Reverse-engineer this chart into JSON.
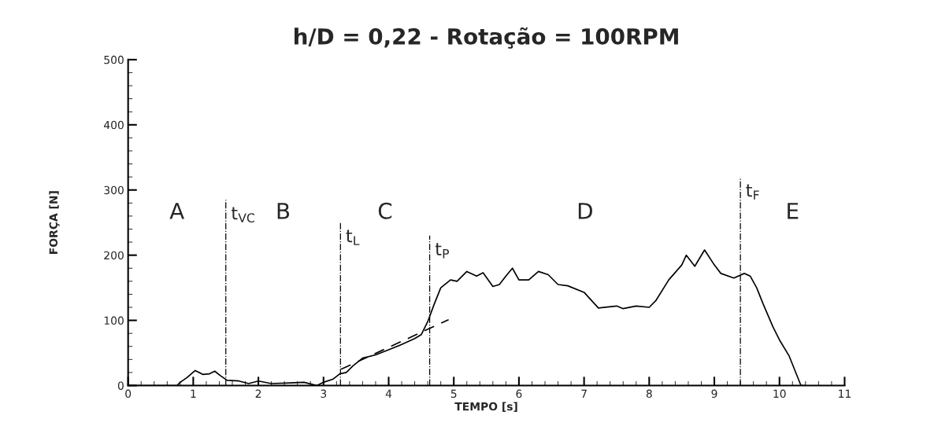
{
  "chart_data": {
    "type": "line",
    "title": "h/D = 0,22 - Rotação = 100RPM",
    "xlabel": "TEMPO [s]",
    "ylabel": "FORÇA [N]",
    "xlim": [
      0,
      11
    ],
    "ylim": [
      0,
      500
    ],
    "xticks": [
      0,
      1,
      2,
      3,
      4,
      5,
      6,
      7,
      8,
      9,
      10,
      11
    ],
    "yticks": [
      0,
      100,
      200,
      300,
      400,
      500
    ],
    "grid": false,
    "legend": false,
    "marker": "none",
    "series": [
      {
        "color": "#000000",
        "line_style": "solid",
        "x": [
          0,
          0.75,
          0.8,
          0.9,
          1.03,
          1.15,
          1.25,
          1.33,
          1.42,
          1.52,
          1.7,
          1.85,
          2.0,
          2.2,
          2.5,
          2.7,
          2.9,
          3.0,
          3.15,
          3.25,
          3.35,
          3.45,
          3.6,
          3.8,
          4.0,
          4.2,
          4.4,
          4.5,
          4.6,
          4.7,
          4.8,
          4.95,
          5.05,
          5.2,
          5.35,
          5.45,
          5.6,
          5.7,
          5.8,
          5.9,
          6.0,
          6.15,
          6.3,
          6.45,
          6.6,
          6.75,
          7.0,
          7.22,
          7.5,
          7.6,
          7.8,
          8.0,
          8.1,
          8.3,
          8.5,
          8.57,
          8.7,
          8.85,
          9.0,
          9.1,
          9.3,
          9.46,
          9.55,
          9.65,
          9.75,
          9.9,
          10.0,
          10.15,
          10.33,
          10.4
        ],
        "values": [
          0,
          0,
          5,
          12,
          23,
          17,
          18,
          22,
          15,
          8,
          7,
          3,
          7,
          3,
          4,
          5,
          0,
          5,
          10,
          18,
          20,
          30,
          42,
          47,
          55,
          63,
          72,
          78,
          98,
          125,
          150,
          162,
          160,
          175,
          168,
          173,
          152,
          155,
          168,
          180,
          162,
          162,
          175,
          170,
          155,
          153,
          143,
          119,
          122,
          118,
          122,
          120,
          130,
          162,
          185,
          200,
          183,
          208,
          185,
          172,
          165,
          172,
          168,
          150,
          125,
          90,
          70,
          45,
          0,
          0
        ]
      },
      {
        "color": "#000000",
        "line_style": "dashed",
        "x": [
          3.27,
          4.92
        ],
        "values": [
          25,
          101
        ]
      }
    ],
    "ref_lines": [
      {
        "axis": "x",
        "value": 1.5,
        "label": "t$_{VC}$"
      },
      {
        "axis": "x",
        "value": 3.26,
        "label": "t$_{L}$"
      },
      {
        "axis": "x",
        "value": 4.63,
        "label": "t$_{P}$"
      },
      {
        "axis": "x",
        "value": 9.4,
        "label": "t$_{F}$"
      }
    ],
    "annotations": [
      "A",
      "B",
      "C",
      "D",
      "E"
    ]
  }
}
